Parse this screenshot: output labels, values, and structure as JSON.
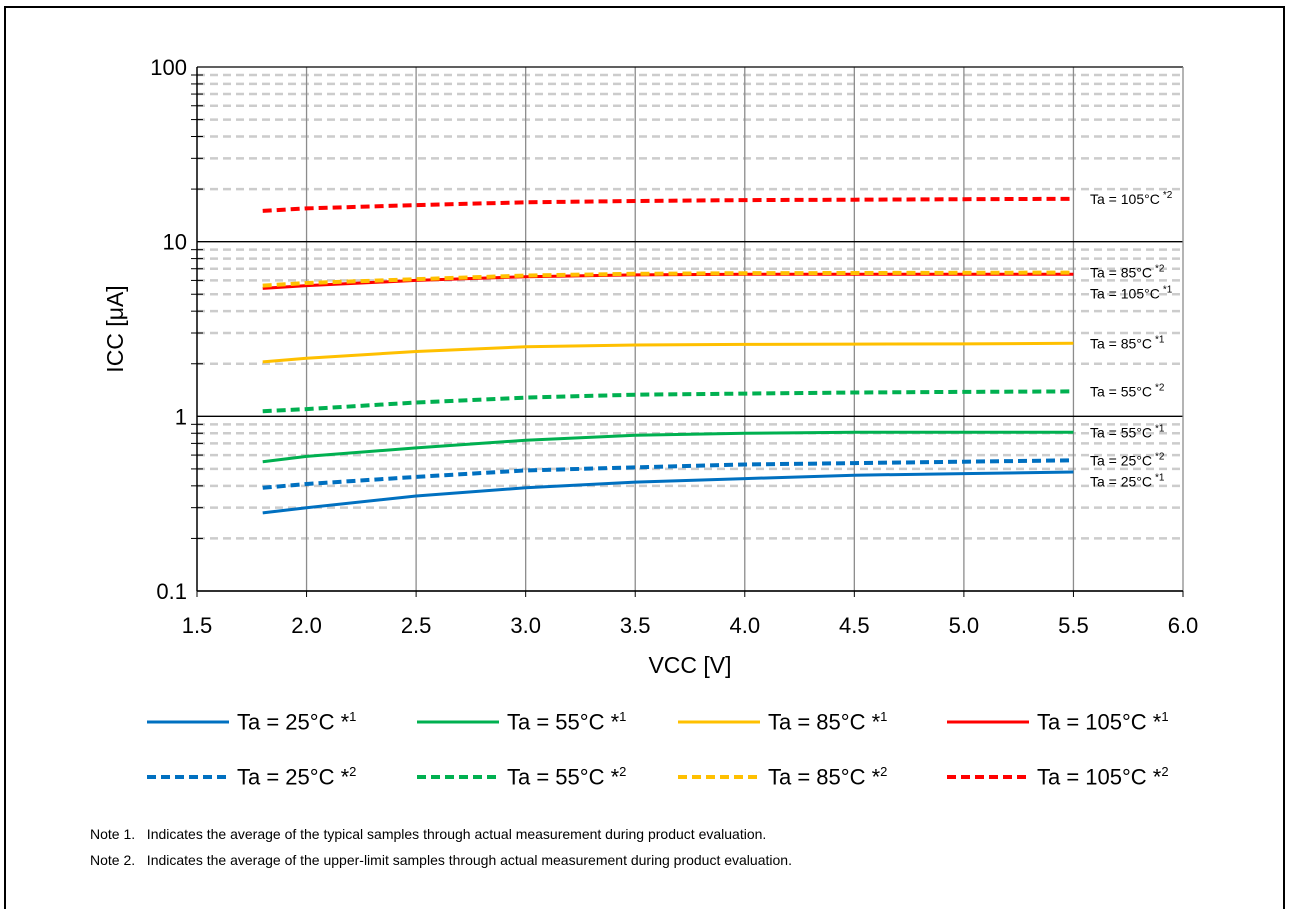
{
  "chart_data": {
    "type": "line",
    "title": "",
    "xlabel": "VCC [V]",
    "ylabel": "ICC [μA]",
    "xlim": [
      1.5,
      6.0
    ],
    "ylim": [
      0.1,
      100
    ],
    "yscale": "log",
    "grid": true,
    "x_ticks": [
      "1.5",
      "2.0",
      "2.5",
      "3.0",
      "3.5",
      "4.0",
      "4.5",
      "5.0",
      "5.5",
      "6.0"
    ],
    "y_ticks": [
      "0.1",
      "1",
      "10",
      "100"
    ],
    "series": [
      {
        "name": "Ta = 25°C *1",
        "note": "1",
        "label": "Ta = 25°C",
        "color": "#0070C0",
        "dash": false,
        "x": [
          1.8,
          2.0,
          2.5,
          3.0,
          3.5,
          4.0,
          4.5,
          5.0,
          5.5
        ],
        "y": [
          0.28,
          0.3,
          0.35,
          0.39,
          0.42,
          0.44,
          0.46,
          0.47,
          0.48
        ]
      },
      {
        "name": "Ta = 55°C *1",
        "note": "1",
        "label": "Ta = 55°C",
        "color": "#00B050",
        "dash": false,
        "x": [
          1.8,
          2.0,
          2.5,
          3.0,
          3.5,
          4.0,
          4.5,
          5.0,
          5.5
        ],
        "y": [
          0.55,
          0.59,
          0.66,
          0.73,
          0.78,
          0.8,
          0.81,
          0.81,
          0.81
        ]
      },
      {
        "name": "Ta = 85°C *1",
        "note": "1",
        "label": "Ta = 85°C",
        "color": "#FFC000",
        "dash": false,
        "x": [
          1.8,
          2.0,
          2.5,
          3.0,
          3.5,
          4.0,
          4.5,
          5.0,
          5.5
        ],
        "y": [
          2.05,
          2.15,
          2.35,
          2.5,
          2.56,
          2.58,
          2.59,
          2.6,
          2.62
        ]
      },
      {
        "name": "Ta = 105°C *1",
        "note": "1",
        "label": "Ta = 105°C",
        "color": "#FF0000",
        "dash": false,
        "x": [
          1.8,
          2.0,
          2.5,
          3.0,
          3.5,
          4.0,
          4.5,
          5.0,
          5.5
        ],
        "y": [
          5.4,
          5.6,
          6.0,
          6.3,
          6.45,
          6.5,
          6.5,
          6.5,
          6.5
        ]
      },
      {
        "name": "Ta = 25°C *2",
        "note": "2",
        "label": "Ta = 25°C",
        "color": "#0070C0",
        "dash": true,
        "x": [
          1.8,
          2.0,
          2.5,
          3.0,
          3.5,
          4.0,
          4.5,
          5.0,
          5.5
        ],
        "y": [
          0.39,
          0.41,
          0.45,
          0.49,
          0.51,
          0.53,
          0.54,
          0.55,
          0.56
        ]
      },
      {
        "name": "Ta = 55°C *2",
        "note": "2",
        "label": "Ta = 55°C",
        "color": "#00B050",
        "dash": true,
        "x": [
          1.8,
          2.0,
          2.5,
          3.0,
          3.5,
          4.0,
          4.5,
          5.0,
          5.5
        ],
        "y": [
          1.07,
          1.1,
          1.2,
          1.28,
          1.33,
          1.35,
          1.37,
          1.38,
          1.39
        ]
      },
      {
        "name": "Ta = 85°C *2",
        "note": "2",
        "label": "Ta = 85°C",
        "color": "#FFC000",
        "dash": true,
        "x": [
          1.8,
          2.0,
          2.5,
          3.0,
          3.5,
          4.0,
          4.5,
          5.0,
          5.5
        ],
        "y": [
          5.6,
          5.8,
          6.1,
          6.4,
          6.55,
          6.6,
          6.62,
          6.63,
          6.65
        ]
      },
      {
        "name": "Ta = 105°C *2",
        "note": "2",
        "label": "Ta = 105°C",
        "color": "#FF0000",
        "dash": true,
        "x": [
          1.8,
          2.0,
          2.5,
          3.0,
          3.5,
          4.0,
          4.5,
          5.0,
          5.5
        ],
        "y": [
          15.0,
          15.5,
          16.2,
          16.8,
          17.1,
          17.3,
          17.4,
          17.5,
          17.6
        ]
      }
    ],
    "annotations": [
      {
        "text": "Ta = 105°C",
        "note": "2",
        "series": 7
      },
      {
        "text": "Ta = 85°C",
        "note": "2",
        "series": 6
      },
      {
        "text": "Ta = 105°C",
        "note": "1",
        "series": 3
      },
      {
        "text": "Ta = 85°C",
        "note": "1",
        "series": 2
      },
      {
        "text": "Ta = 55°C",
        "note": "2",
        "series": 5
      },
      {
        "text": "Ta = 55°C",
        "note": "1",
        "series": 1
      },
      {
        "text": "Ta = 25°C",
        "note": "2",
        "series": 4
      },
      {
        "text": "Ta = 25°C",
        "note": "1",
        "series": 0
      }
    ]
  },
  "legend_rows": [
    [
      {
        "label": "Ta = 25°C",
        "note": "1",
        "color": "#0070C0",
        "dash": false
      },
      {
        "label": "Ta = 55°C",
        "note": "1",
        "color": "#00B050",
        "dash": false
      },
      {
        "label": "Ta = 85°C",
        "note": "1",
        "color": "#FFC000",
        "dash": false
      },
      {
        "label": "Ta = 105°C",
        "note": "1",
        "color": "#FF0000",
        "dash": false
      }
    ],
    [
      {
        "label": "Ta = 25°C",
        "note": "2",
        "color": "#0070C0",
        "dash": true
      },
      {
        "label": "Ta = 55°C",
        "note": "2",
        "color": "#00B050",
        "dash": true
      },
      {
        "label": "Ta = 85°C",
        "note": "2",
        "color": "#FFC000",
        "dash": true
      },
      {
        "label": "Ta = 105°C",
        "note": "2",
        "color": "#FF0000",
        "dash": true
      }
    ]
  ],
  "notes": [
    "Note 1.   Indicates the average of the typical samples through actual measurement during product evaluation.",
    "Note 2.   Indicates the average of the upper-limit samples through actual measurement during product evaluation."
  ]
}
